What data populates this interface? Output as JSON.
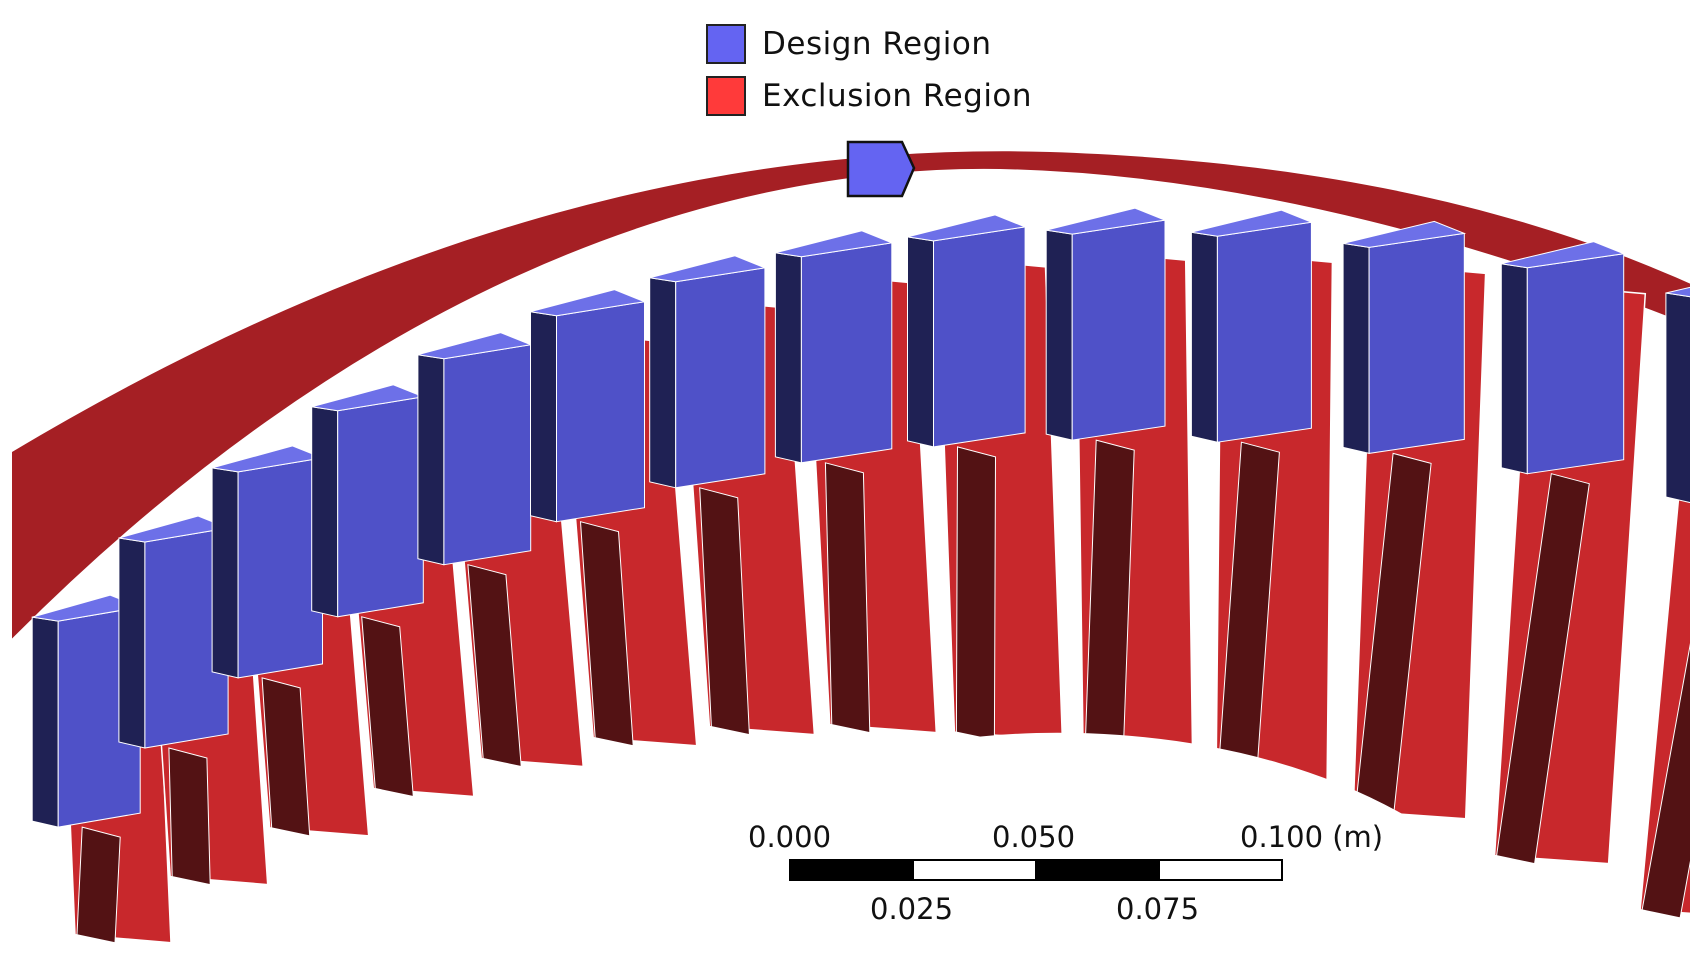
{
  "legend": {
    "items": [
      {
        "label": "Design Region",
        "color": "#6464f2"
      },
      {
        "label": "Exclusion Region",
        "color": "#ff3a3a"
      }
    ]
  },
  "scale_bar": {
    "top_labels": [
      "0.000",
      "0.050",
      "0.100 (m)"
    ],
    "bottom_labels": [
      "0.025",
      "0.075"
    ]
  },
  "colors": {
    "outer_ring": "#a51f24",
    "tooth_face": "#c8282c",
    "tooth_shadow": "#531214",
    "magnet_face": "#4f51c8",
    "magnet_side": "#1f2154",
    "magnet_top": "#6d70e8",
    "marker": "#6464f2"
  },
  "teeth_count": 14
}
